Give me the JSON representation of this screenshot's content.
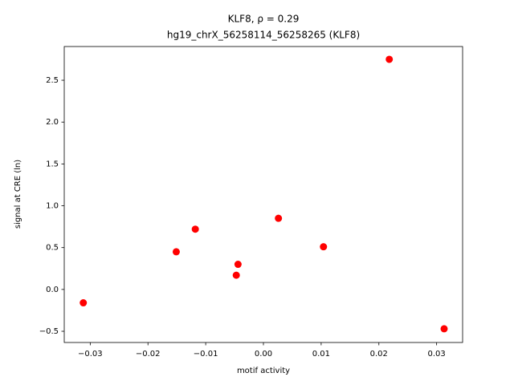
{
  "chart_data": {
    "type": "scatter",
    "title": "KLF8, ρ = 0.29",
    "subtitle": "hg19_chrX_56258114_56258265 (KLF8)",
    "x_label": "motif activity",
    "y_label": "signal at CRE (ln)",
    "color": "#ff0000",
    "x": [
      -0.0312,
      -0.0151,
      -0.0118,
      -0.0047,
      -0.0044,
      0.0026,
      0.0104,
      0.0218,
      0.0313
    ],
    "values": [
      -0.16,
      0.45,
      0.72,
      0.17,
      0.3,
      0.85,
      0.51,
      2.75,
      -0.47
    ],
    "xlim": [
      -0.0345,
      0.0345
    ],
    "ylim": [
      -0.634,
      2.903
    ],
    "xticks": [
      {
        "value": -0.03,
        "label": "−0.03"
      },
      {
        "value": -0.02,
        "label": "−0.02"
      },
      {
        "value": -0.01,
        "label": "−0.01"
      },
      {
        "value": 0,
        "label": "0.00"
      },
      0.01,
      0.02,
      0.03
    ],
    "yticks": [
      {
        "value": -0.5,
        "label": "−0.5"
      },
      {
        "value": 0,
        "label": "0.0"
      },
      0.5,
      {
        "value": 1,
        "label": "1.0"
      },
      1.5,
      {
        "value": 2,
        "label": "2.0"
      },
      2.5
    ],
    "grid": false
  }
}
